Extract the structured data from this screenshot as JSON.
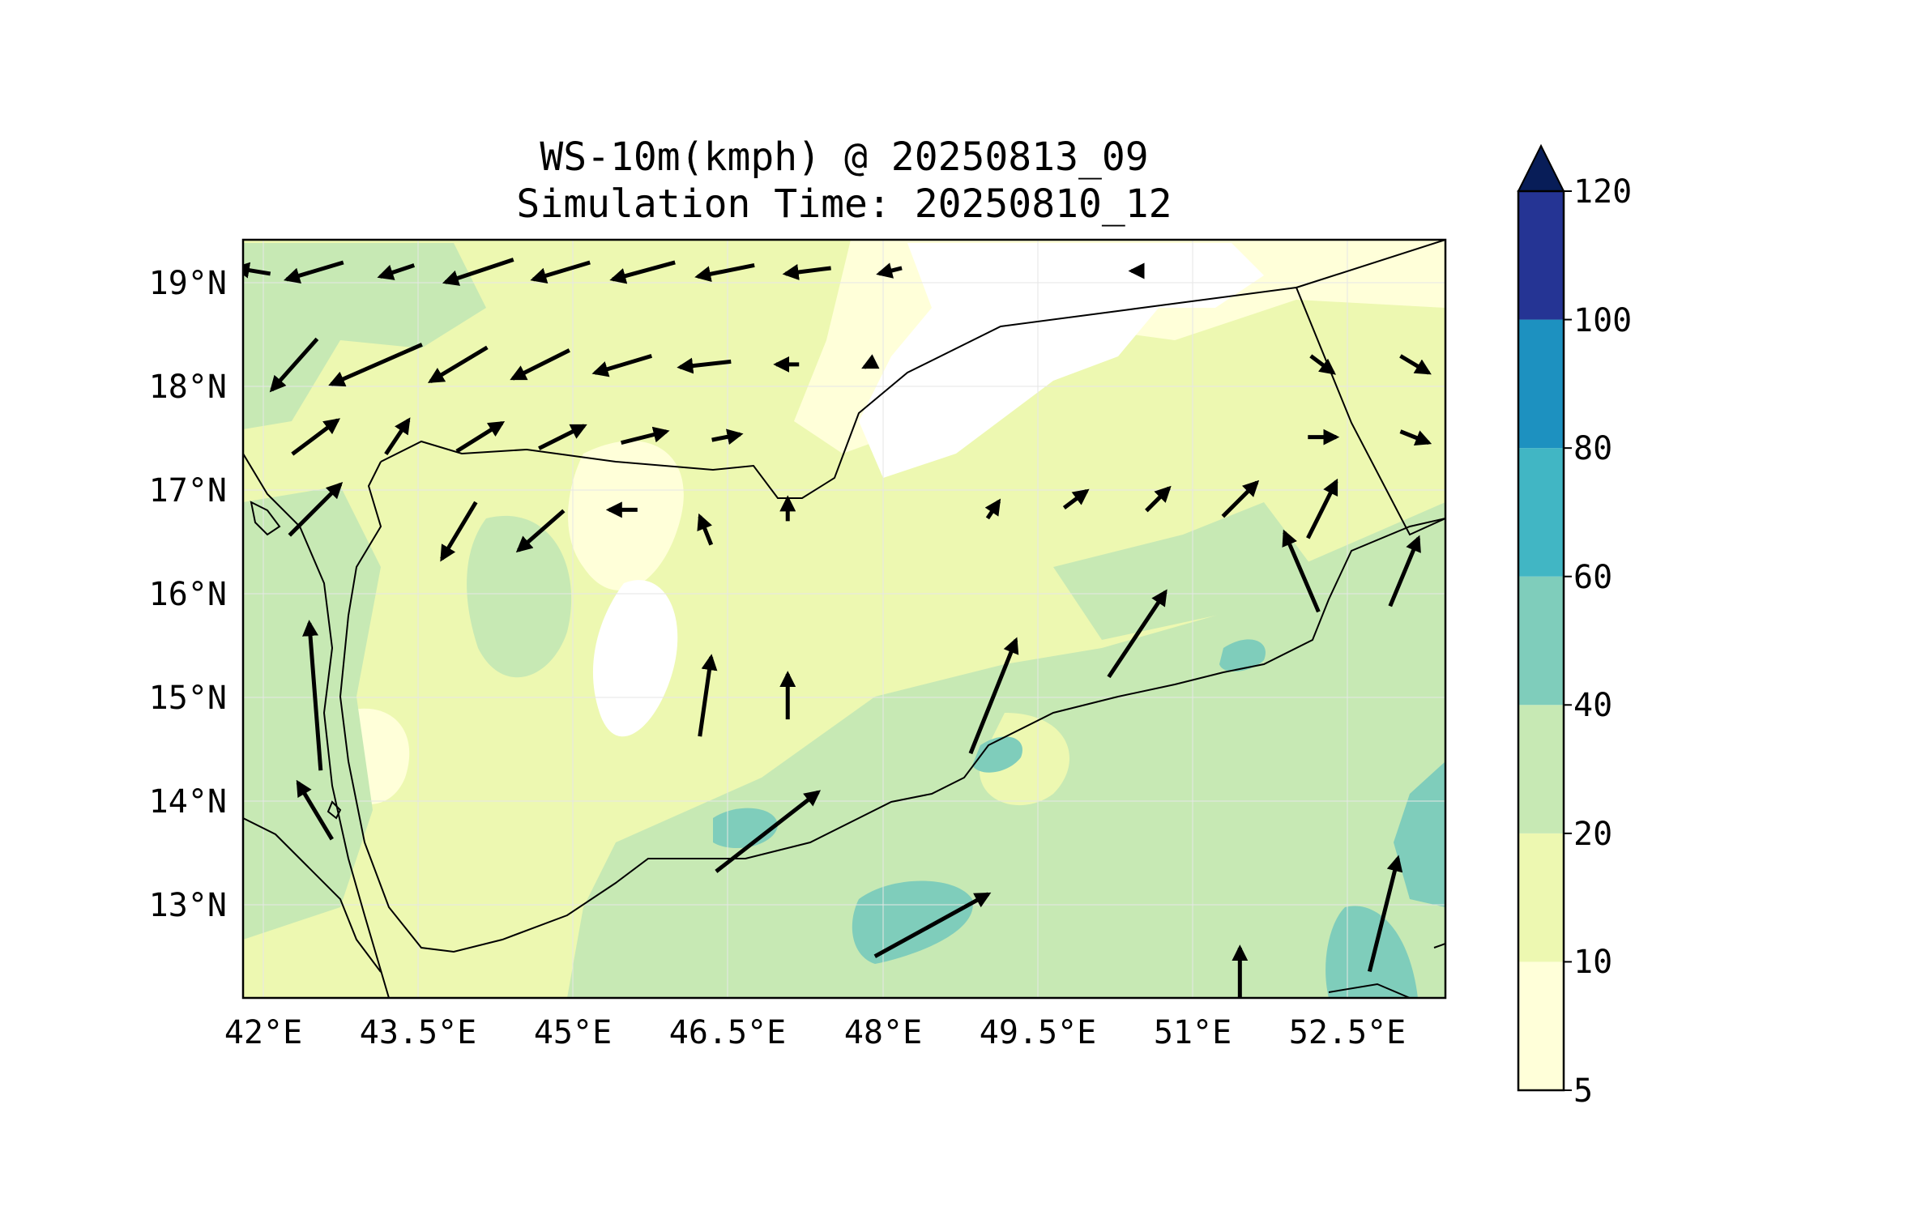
{
  "title": {
    "line1": "WS-10m(kmph) @ 20250813_09",
    "line2": "Simulation Time: 20250810_12"
  },
  "axes": {
    "x_ticks": [
      "42°E",
      "43.5°E",
      "45°E",
      "46.5°E",
      "48°E",
      "49.5°E",
      "51°E",
      "52.5°E"
    ],
    "y_ticks": [
      "13°N",
      "14°N",
      "15°N",
      "16°N",
      "17°N",
      "18°N",
      "19°N"
    ]
  },
  "colorbar": {
    "levels": [
      "5",
      "10",
      "20",
      "40",
      "60",
      "80",
      "100",
      "120"
    ],
    "colors": [
      "#ffffd9",
      "#edf8b1",
      "#c7e9b4",
      "#7fcdbb",
      "#41b6c4",
      "#1d91c0",
      "#253494",
      "#081d58"
    ],
    "extend": "max"
  },
  "map": {
    "lon_range": [
      41.9,
      53.6
    ],
    "lat_range": [
      12.1,
      19.4
    ],
    "gridlines": true,
    "land_fill_color": "#edf8b1"
  },
  "chart_data": {
    "type": "heatmap",
    "variable": "WS-10m(kmph)",
    "xlim": [
      41.9,
      53.6
    ],
    "ylim": [
      12.1,
      19.4
    ],
    "levels": [
      5,
      10,
      20,
      40,
      60,
      80,
      100,
      120
    ],
    "vectors": [
      {
        "lon": 42.0,
        "lat": 19.1,
        "u": -0.6,
        "v": 0.1
      },
      {
        "lon": 42.6,
        "lat": 19.1,
        "u": -1.0,
        "v": -0.3
      },
      {
        "lon": 43.4,
        "lat": 19.1,
        "u": -0.6,
        "v": -0.2
      },
      {
        "lon": 44.2,
        "lat": 19.1,
        "u": -1.2,
        "v": -0.4
      },
      {
        "lon": 45.0,
        "lat": 19.1,
        "u": -1.0,
        "v": -0.3
      },
      {
        "lon": 45.8,
        "lat": 19.1,
        "u": -1.1,
        "v": -0.3
      },
      {
        "lon": 46.6,
        "lat": 19.1,
        "u": -1.0,
        "v": -0.2
      },
      {
        "lon": 47.4,
        "lat": 19.1,
        "u": -0.8,
        "v": -0.1
      },
      {
        "lon": 48.2,
        "lat": 19.1,
        "u": -0.4,
        "v": -0.1
      },
      {
        "lon": 50.6,
        "lat": 19.1,
        "u": -0.2,
        "v": 0.0
      },
      {
        "lon": 42.4,
        "lat": 18.2,
        "u": -0.8,
        "v": -0.9
      },
      {
        "lon": 43.2,
        "lat": 18.2,
        "u": -1.6,
        "v": -0.7
      },
      {
        "lon": 44.0,
        "lat": 18.2,
        "u": -1.0,
        "v": -0.6
      },
      {
        "lon": 44.8,
        "lat": 18.2,
        "u": -1.0,
        "v": -0.5
      },
      {
        "lon": 45.6,
        "lat": 18.2,
        "u": -1.0,
        "v": -0.3
      },
      {
        "lon": 46.4,
        "lat": 18.2,
        "u": -0.9,
        "v": -0.1
      },
      {
        "lon": 47.2,
        "lat": 18.2,
        "u": -0.4,
        "v": 0.0
      },
      {
        "lon": 48.0,
        "lat": 18.2,
        "u": -0.2,
        "v": -0.1
      },
      {
        "lon": 52.4,
        "lat": 18.2,
        "u": 0.4,
        "v": -0.3
      },
      {
        "lon": 53.3,
        "lat": 18.2,
        "u": 0.5,
        "v": -0.3
      },
      {
        "lon": 42.6,
        "lat": 17.5,
        "u": 0.8,
        "v": 0.6
      },
      {
        "lon": 43.4,
        "lat": 17.5,
        "u": 0.4,
        "v": 0.6
      },
      {
        "lon": 44.2,
        "lat": 17.5,
        "u": 0.8,
        "v": 0.5
      },
      {
        "lon": 45.0,
        "lat": 17.5,
        "u": 0.8,
        "v": 0.4
      },
      {
        "lon": 45.8,
        "lat": 17.5,
        "u": 0.8,
        "v": 0.2
      },
      {
        "lon": 46.6,
        "lat": 17.5,
        "u": 0.5,
        "v": 0.1
      },
      {
        "lon": 52.4,
        "lat": 17.5,
        "u": 0.5,
        "v": 0.0
      },
      {
        "lon": 53.3,
        "lat": 17.5,
        "u": 0.5,
        "v": -0.2
      },
      {
        "lon": 42.6,
        "lat": 16.8,
        "u": 0.9,
        "v": 0.9
      },
      {
        "lon": 44.0,
        "lat": 16.6,
        "u": -0.6,
        "v": -1.0
      },
      {
        "lon": 44.8,
        "lat": 16.6,
        "u": -0.8,
        "v": -0.7
      },
      {
        "lon": 45.6,
        "lat": 16.8,
        "u": -0.5,
        "v": 0.0
      },
      {
        "lon": 46.4,
        "lat": 16.6,
        "u": -0.2,
        "v": 0.5
      },
      {
        "lon": 47.2,
        "lat": 16.8,
        "u": 0.0,
        "v": 0.4
      },
      {
        "lon": 49.2,
        "lat": 16.8,
        "u": 0.2,
        "v": 0.3
      },
      {
        "lon": 50.0,
        "lat": 16.9,
        "u": 0.4,
        "v": 0.3
      },
      {
        "lon": 50.8,
        "lat": 16.9,
        "u": 0.4,
        "v": 0.4
      },
      {
        "lon": 51.6,
        "lat": 16.9,
        "u": 0.6,
        "v": 0.6
      },
      {
        "lon": 52.4,
        "lat": 16.8,
        "u": 0.5,
        "v": 1.0
      },
      {
        "lon": 52.2,
        "lat": 16.2,
        "u": -0.6,
        "v": 1.4
      },
      {
        "lon": 53.2,
        "lat": 16.2,
        "u": 0.5,
        "v": 1.2
      },
      {
        "lon": 42.6,
        "lat": 15.0,
        "u": -0.2,
        "v": 2.6
      },
      {
        "lon": 42.6,
        "lat": 13.9,
        "u": -0.6,
        "v": 1.0
      },
      {
        "lon": 46.4,
        "lat": 15.0,
        "u": 0.2,
        "v": 1.4
      },
      {
        "lon": 47.2,
        "lat": 15.0,
        "u": 0.0,
        "v": 0.8
      },
      {
        "lon": 49.2,
        "lat": 15.0,
        "u": 0.8,
        "v": 2.0
      },
      {
        "lon": 50.6,
        "lat": 15.6,
        "u": 1.0,
        "v": 1.5
      },
      {
        "lon": 47.0,
        "lat": 13.7,
        "u": 1.8,
        "v": 1.4
      },
      {
        "lon": 48.6,
        "lat": 12.8,
        "u": 2.0,
        "v": 1.1
      },
      {
        "lon": 51.6,
        "lat": 12.2,
        "u": 0.0,
        "v": 1.4
      },
      {
        "lon": 53.0,
        "lat": 12.9,
        "u": 0.5,
        "v": 2.0
      }
    ]
  }
}
